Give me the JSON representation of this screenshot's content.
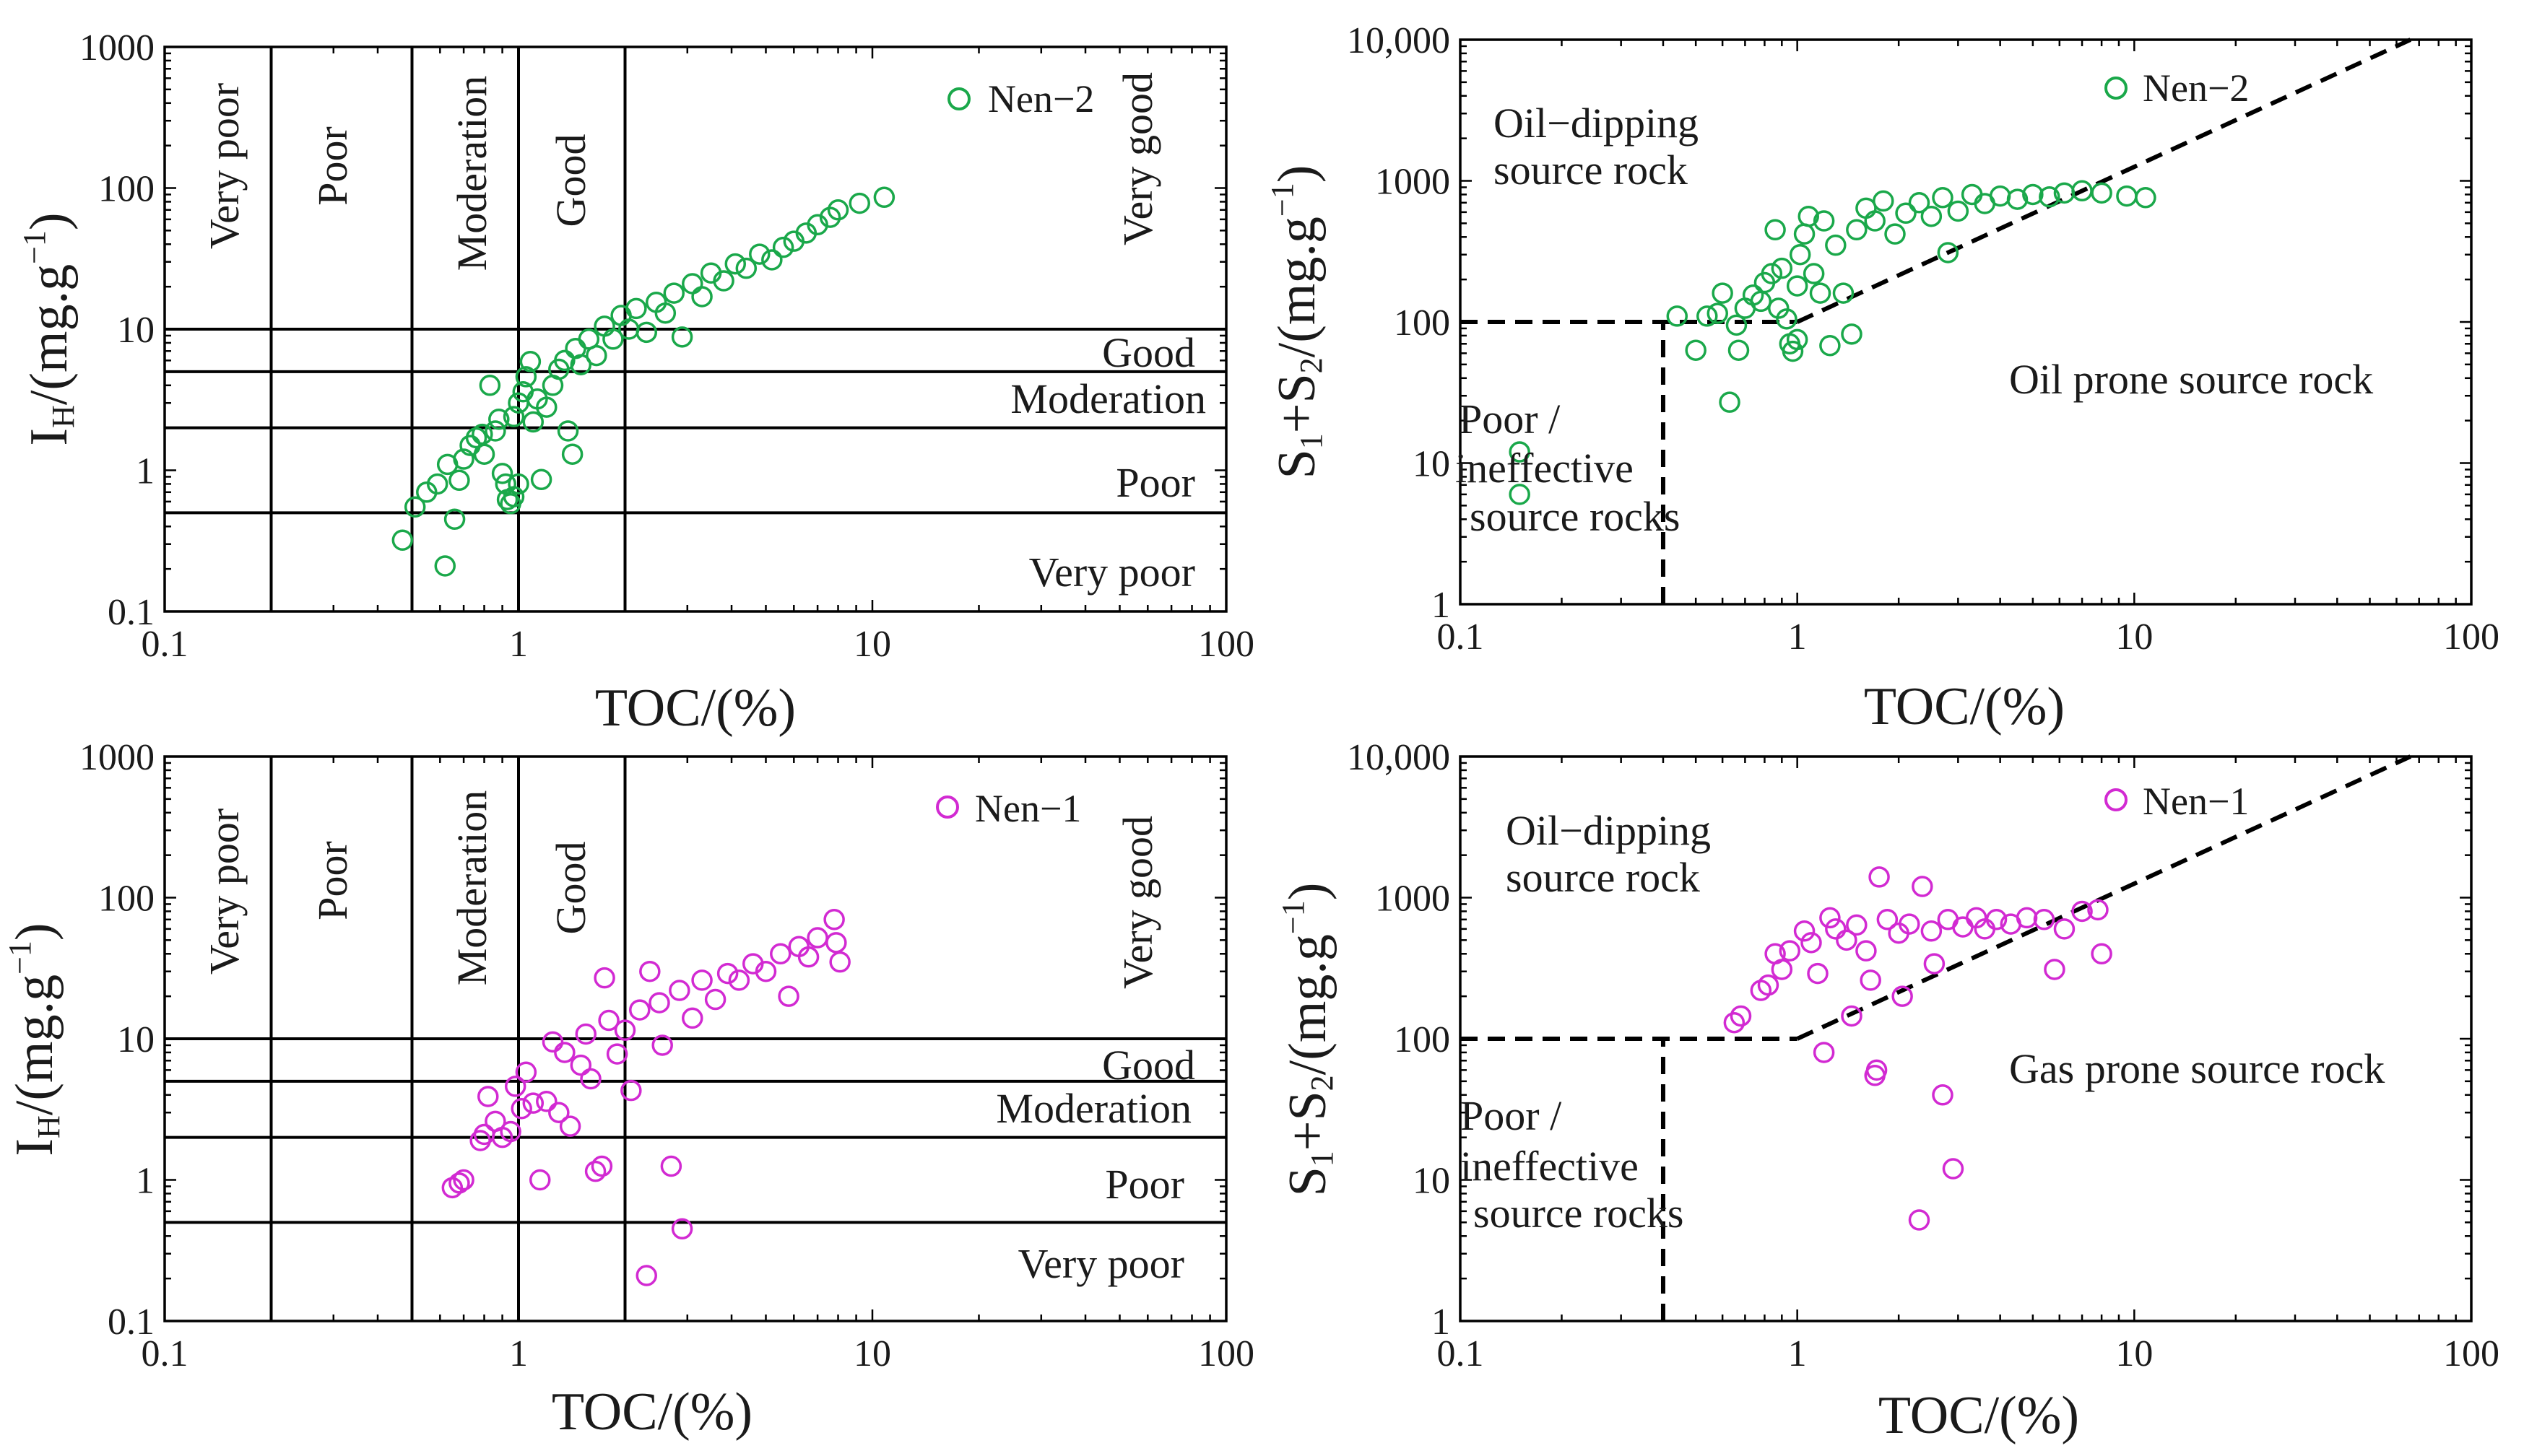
{
  "colors": {
    "nen2": "#1aa84a",
    "nen1": "#d22ad2",
    "axis": "#000000"
  },
  "chart_data": [
    {
      "type": "scatter",
      "xlabel": "TOC/(%)",
      "ylabel_main": "I",
      "ylabel_sub": "H",
      "ylabel_unit": "/(mg.g",
      "ylabel_exp": "−1",
      "ylabel_close": ")",
      "xscale": "log",
      "yscale": "log",
      "xlim": [
        0.1,
        100
      ],
      "ylim": [
        0.1,
        1000
      ],
      "xticks": [
        "0.1",
        "1",
        "10",
        "100"
      ],
      "yticks": [
        "0.1",
        "1",
        "10",
        "100",
        "1000"
      ],
      "vertical_lines": [
        0.2,
        0.5,
        1,
        2
      ],
      "horizontal_lines": [
        0.5,
        2,
        5,
        10
      ],
      "x_classes": [
        "Very poor",
        "Poor",
        "Moderation",
        "Good",
        "Very good"
      ],
      "y_classes": [
        "Good",
        "Moderation",
        "Poor",
        "Very poor"
      ],
      "legend_position": "top-right",
      "series": [
        {
          "name": "Nen−2",
          "color": "#1aa84a",
          "marker": "open-circle",
          "points": [
            [
              0.47,
              0.32
            ],
            [
              0.51,
              0.55
            ],
            [
              0.55,
              0.7
            ],
            [
              0.59,
              0.8
            ],
            [
              0.62,
              0.21
            ],
            [
              0.63,
              1.1
            ],
            [
              0.66,
              0.45
            ],
            [
              0.68,
              0.85
            ],
            [
              0.7,
              1.2
            ],
            [
              0.73,
              1.5
            ],
            [
              0.76,
              1.7
            ],
            [
              0.79,
              1.8
            ],
            [
              0.8,
              1.3
            ],
            [
              0.83,
              4.0
            ],
            [
              0.86,
              1.9
            ],
            [
              0.88,
              2.3
            ],
            [
              0.9,
              0.95
            ],
            [
              0.92,
              0.8
            ],
            [
              0.93,
              0.62
            ],
            [
              0.95,
              0.58
            ],
            [
              0.97,
              0.65
            ],
            [
              1.0,
              0.8
            ],
            [
              0.97,
              2.4
            ],
            [
              1.0,
              3.0
            ],
            [
              1.03,
              3.6
            ],
            [
              1.05,
              4.6
            ],
            [
              1.08,
              5.9
            ],
            [
              1.1,
              2.2
            ],
            [
              1.13,
              3.2
            ],
            [
              1.16,
              0.86
            ],
            [
              1.2,
              2.8
            ],
            [
              1.25,
              4.0
            ],
            [
              1.3,
              5.2
            ],
            [
              1.35,
              6.0
            ],
            [
              1.38,
              1.9
            ],
            [
              1.42,
              1.3
            ],
            [
              1.45,
              7.3
            ],
            [
              1.5,
              5.6
            ],
            [
              1.58,
              8.5
            ],
            [
              1.66,
              6.5
            ],
            [
              1.75,
              10.5
            ],
            [
              1.85,
              8.5
            ],
            [
              1.95,
              12.5
            ],
            [
              2.05,
              10.0
            ],
            [
              2.15,
              14.0
            ],
            [
              2.3,
              9.5
            ],
            [
              2.45,
              15.5
            ],
            [
              2.6,
              13.0
            ],
            [
              2.75,
              18.0
            ],
            [
              2.9,
              8.8
            ],
            [
              3.1,
              21.0
            ],
            [
              3.3,
              17.0
            ],
            [
              3.5,
              25.0
            ],
            [
              3.8,
              22.0
            ],
            [
              4.1,
              29.0
            ],
            [
              4.4,
              27.0
            ],
            [
              4.8,
              34.0
            ],
            [
              5.2,
              31.0
            ],
            [
              5.6,
              38.0
            ],
            [
              6.0,
              42.0
            ],
            [
              6.5,
              48.0
            ],
            [
              7.0,
              55.0
            ],
            [
              7.6,
              62.0
            ],
            [
              8.0,
              70.0
            ],
            [
              9.2,
              78.0
            ],
            [
              10.8,
              86.0
            ]
          ]
        }
      ]
    },
    {
      "type": "scatter",
      "xlabel": "TOC/(%)",
      "ylabel_main": "S",
      "ylabel_sub1": "1",
      "ylabel_plus": "+S",
      "ylabel_sub2": "2",
      "ylabel_unit": "/(mg.g",
      "ylabel_exp": "−1",
      "ylabel_close": ")",
      "xscale": "log",
      "yscale": "log",
      "xlim": [
        0.1,
        100
      ],
      "ylim": [
        1,
        10000
      ],
      "xticks": [
        "0.1",
        "1",
        "10",
        "100"
      ],
      "yticks": [
        "1",
        "10",
        "100",
        "1000",
        "10,000"
      ],
      "boundaries": {
        "horizontal_100": [
          0.1,
          1
        ],
        "vertical_0_4": [
          1,
          100
        ],
        "diagonal": [
          [
            1,
            100
          ],
          [
            66,
            10000
          ]
        ]
      },
      "regions": {
        "upper_1": "Oil−dipping",
        "upper_2": "source rock",
        "lower_right": "Oil prone source rock",
        "lower_left_1": "Poor /",
        "lower_left_2": "ineffective",
        "lower_left_3": "source rocks"
      },
      "legend_position": "top-right",
      "series": [
        {
          "name": "Nen−2",
          "color": "#1aa84a",
          "marker": "open-circle",
          "points": [
            [
              0.15,
              12
            ],
            [
              0.15,
              6
            ],
            [
              0.44,
              110
            ],
            [
              0.5,
              63
            ],
            [
              0.54,
              110
            ],
            [
              0.58,
              115
            ],
            [
              0.6,
              160
            ],
            [
              0.63,
              27
            ],
            [
              0.66,
              95
            ],
            [
              0.67,
              63
            ],
            [
              0.7,
              125
            ],
            [
              0.74,
              155
            ],
            [
              0.78,
              140
            ],
            [
              0.8,
              190
            ],
            [
              0.84,
              220
            ],
            [
              0.86,
              450
            ],
            [
              0.88,
              125
            ],
            [
              0.9,
              240
            ],
            [
              0.93,
              105
            ],
            [
              0.95,
              70
            ],
            [
              0.97,
              62
            ],
            [
              1.0,
              75
            ],
            [
              1.0,
              180
            ],
            [
              1.02,
              300
            ],
            [
              1.05,
              420
            ],
            [
              1.08,
              560
            ],
            [
              1.12,
              220
            ],
            [
              1.17,
              160
            ],
            [
              1.2,
              520
            ],
            [
              1.25,
              68
            ],
            [
              1.3,
              350
            ],
            [
              1.37,
              160
            ],
            [
              1.45,
              82
            ],
            [
              1.5,
              450
            ],
            [
              1.6,
              640
            ],
            [
              1.7,
              520
            ],
            [
              1.8,
              720
            ],
            [
              1.95,
              420
            ],
            [
              2.1,
              590
            ],
            [
              2.3,
              700
            ],
            [
              2.5,
              560
            ],
            [
              2.7,
              760
            ],
            [
              2.8,
              310
            ],
            [
              3.0,
              610
            ],
            [
              3.3,
              800
            ],
            [
              3.6,
              690
            ],
            [
              4.0,
              780
            ],
            [
              4.5,
              740
            ],
            [
              5.0,
              800
            ],
            [
              5.6,
              770
            ],
            [
              6.2,
              820
            ],
            [
              7.0,
              850
            ],
            [
              8.0,
              820
            ],
            [
              9.5,
              780
            ],
            [
              10.8,
              760
            ]
          ]
        }
      ]
    },
    {
      "type": "scatter",
      "xlabel": "TOC/(%)",
      "ylabel_main": "I",
      "ylabel_sub": "H",
      "ylabel_unit": "/(mg.g",
      "ylabel_exp": "−1",
      "ylabel_close": ")",
      "xscale": "log",
      "yscale": "log",
      "xlim": [
        0.1,
        100
      ],
      "ylim": [
        0.1,
        1000
      ],
      "xticks": [
        "0.1",
        "1",
        "10",
        "100"
      ],
      "yticks": [
        "0.1",
        "1",
        "10",
        "100",
        "1000"
      ],
      "vertical_lines": [
        0.2,
        0.5,
        1,
        2
      ],
      "horizontal_lines": [
        0.5,
        2,
        5,
        10
      ],
      "x_classes": [
        "Very poor",
        "Poor",
        "Moderation",
        "Good",
        "Very good"
      ],
      "y_classes": [
        "Good",
        "Moderation",
        "Poor",
        "Very poor"
      ],
      "legend_position": "top-right",
      "series": [
        {
          "name": "Nen−1",
          "color": "#d22ad2",
          "marker": "open-circle",
          "points": [
            [
              0.65,
              0.88
            ],
            [
              0.68,
              0.95
            ],
            [
              0.7,
              1.0
            ],
            [
              0.78,
              1.9
            ],
            [
              0.8,
              2.1
            ],
            [
              0.82,
              3.9
            ],
            [
              0.86,
              2.6
            ],
            [
              0.9,
              2.0
            ],
            [
              0.95,
              2.2
            ],
            [
              0.98,
              4.6
            ],
            [
              1.02,
              3.2
            ],
            [
              1.05,
              5.8
            ],
            [
              1.1,
              3.5
            ],
            [
              1.15,
              1.0
            ],
            [
              1.2,
              3.6
            ],
            [
              1.25,
              9.5
            ],
            [
              1.3,
              3.0
            ],
            [
              1.35,
              8.0
            ],
            [
              1.4,
              2.4
            ],
            [
              1.5,
              6.5
            ],
            [
              1.55,
              10.8
            ],
            [
              1.6,
              5.2
            ],
            [
              1.65,
              1.15
            ],
            [
              1.72,
              1.25
            ],
            [
              1.75,
              27
            ],
            [
              1.8,
              13.5
            ],
            [
              1.9,
              7.8
            ],
            [
              2.0,
              11.5
            ],
            [
              2.08,
              4.3
            ],
            [
              2.2,
              16
            ],
            [
              2.3,
              0.21
            ],
            [
              2.35,
              30
            ],
            [
              2.5,
              18
            ],
            [
              2.55,
              9.0
            ],
            [
              2.7,
              1.25
            ],
            [
              2.85,
              22
            ],
            [
              2.9,
              0.45
            ],
            [
              3.1,
              14
            ],
            [
              3.3,
              26
            ],
            [
              3.6,
              19
            ],
            [
              3.9,
              29
            ],
            [
              4.2,
              26
            ],
            [
              4.6,
              34
            ],
            [
              5.0,
              30
            ],
            [
              5.5,
              40
            ],
            [
              5.8,
              20
            ],
            [
              6.2,
              45
            ],
            [
              6.6,
              38
            ],
            [
              7.0,
              52
            ],
            [
              7.8,
              70
            ],
            [
              7.9,
              48
            ],
            [
              8.1,
              35
            ]
          ]
        }
      ]
    },
    {
      "type": "scatter",
      "xlabel": "TOC/(%)",
      "ylabel_main": "S",
      "ylabel_sub1": "1",
      "ylabel_plus": "+S",
      "ylabel_sub2": "2",
      "ylabel_unit": "/(mg.g",
      "ylabel_exp": "−1",
      "ylabel_close": ")",
      "xscale": "log",
      "yscale": "log",
      "xlim": [
        0.1,
        100
      ],
      "ylim": [
        1,
        10000
      ],
      "xticks": [
        "0.1",
        "1",
        "10",
        "100"
      ],
      "yticks": [
        "1",
        "10",
        "100",
        "1000",
        "10,000"
      ],
      "boundaries": {
        "horizontal_100": [
          0.1,
          1
        ],
        "vertical_0_4": [
          1,
          100
        ],
        "diagonal": [
          [
            1,
            100
          ],
          [
            66,
            10000
          ]
        ]
      },
      "regions": {
        "upper_1": "Oil−dipping",
        "upper_2": "source rock",
        "lower_right": "Gas prone source rock",
        "lower_left_1": "Poor /",
        "lower_left_2": "ineffective",
        "lower_left_3": "source rocks"
      },
      "legend_position": "top-right",
      "series": [
        {
          "name": "Nen−1",
          "color": "#d22ad2",
          "marker": "open-circle",
          "points": [
            [
              0.65,
              130
            ],
            [
              0.68,
              145
            ],
            [
              0.78,
              220
            ],
            [
              0.82,
              240
            ],
            [
              0.86,
              400
            ],
            [
              0.9,
              310
            ],
            [
              0.95,
              420
            ],
            [
              1.05,
              580
            ],
            [
              1.1,
              480
            ],
            [
              1.15,
              290
            ],
            [
              1.2,
              80
            ],
            [
              1.25,
              720
            ],
            [
              1.3,
              600
            ],
            [
              1.4,
              500
            ],
            [
              1.45,
              145
            ],
            [
              1.5,
              640
            ],
            [
              1.6,
              420
            ],
            [
              1.65,
              260
            ],
            [
              1.7,
              55
            ],
            [
              1.72,
              60
            ],
            [
              1.75,
              1400
            ],
            [
              1.85,
              700
            ],
            [
              2.0,
              560
            ],
            [
              2.05,
              200
            ],
            [
              2.15,
              650
            ],
            [
              2.3,
              5.2
            ],
            [
              2.35,
              1200
            ],
            [
              2.5,
              580
            ],
            [
              2.55,
              340
            ],
            [
              2.7,
              40
            ],
            [
              2.8,
              700
            ],
            [
              2.9,
              12
            ],
            [
              3.1,
              620
            ],
            [
              3.4,
              720
            ],
            [
              3.6,
              600
            ],
            [
              3.9,
              700
            ],
            [
              4.3,
              650
            ],
            [
              4.8,
              720
            ],
            [
              5.4,
              700
            ],
            [
              5.8,
              310
            ],
            [
              6.2,
              600
            ],
            [
              7.0,
              800
            ],
            [
              7.8,
              820
            ],
            [
              8.0,
              400
            ]
          ]
        }
      ]
    }
  ]
}
